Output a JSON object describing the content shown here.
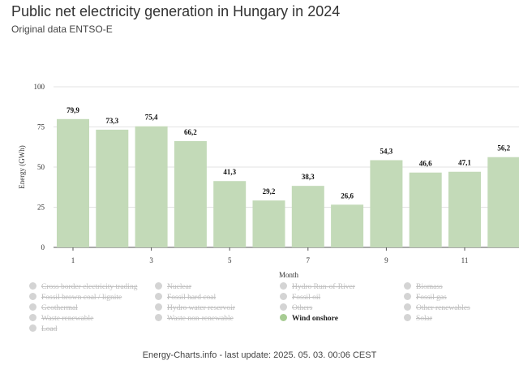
{
  "title": "Public net electricity generation in Hungary in 2024",
  "subtitle": "Original data ENTSO-E",
  "footer": "Energy-Charts.info - last update: 2025. 05. 03. 00:06 CEST",
  "chart_data": {
    "type": "bar",
    "title": "Public net electricity generation in Hungary in 2024",
    "xlabel": "Month",
    "ylabel": "Energy (GWh)",
    "ylim": [
      0,
      100
    ],
    "yticks": [
      0,
      25,
      50,
      75,
      100
    ],
    "xticks": [
      "1",
      "3",
      "5",
      "7",
      "9",
      "11"
    ],
    "categories": [
      1,
      2,
      3,
      4,
      5,
      6,
      7,
      8,
      9,
      10,
      11,
      12
    ],
    "grid": true,
    "legend_placement": "bottom",
    "series": [
      {
        "name": "Wind onshore",
        "color": "#c3dab8",
        "values": [
          79.9,
          73.3,
          75.4,
          66.2,
          41.3,
          29.2,
          38.3,
          26.6,
          54.3,
          46.6,
          47.1,
          56.2
        ],
        "labels": [
          "79,9",
          "73,3",
          "75,4",
          "66,2",
          "41,3",
          "29,2",
          "38,3",
          "26,6",
          "54,3",
          "46,6",
          "47,1",
          "56,2"
        ]
      }
    ]
  },
  "legend": {
    "items": [
      {
        "label": "Cross border electricity trading",
        "active": false
      },
      {
        "label": "Nuclear",
        "active": false
      },
      {
        "label": "Hydro Run-of-River",
        "active": false
      },
      {
        "label": "Biomass",
        "active": false
      },
      {
        "label": "Fossil brown coal / lignite",
        "active": false
      },
      {
        "label": "Fossil hard coal",
        "active": false
      },
      {
        "label": "Fossil oil",
        "active": false
      },
      {
        "label": "Fossil gas",
        "active": false
      },
      {
        "label": "Geothermal",
        "active": false
      },
      {
        "label": "Hydro water reservoir",
        "active": false
      },
      {
        "label": "Others",
        "active": false
      },
      {
        "label": "Other renewables",
        "active": false
      },
      {
        "label": "Waste renewable",
        "active": false
      },
      {
        "label": "Waste non-renewable",
        "active": false
      },
      {
        "label": "Wind onshore",
        "active": true,
        "color": "#a7cc93"
      },
      {
        "label": "Solar",
        "active": false
      },
      {
        "label": "Load",
        "active": false
      }
    ]
  }
}
